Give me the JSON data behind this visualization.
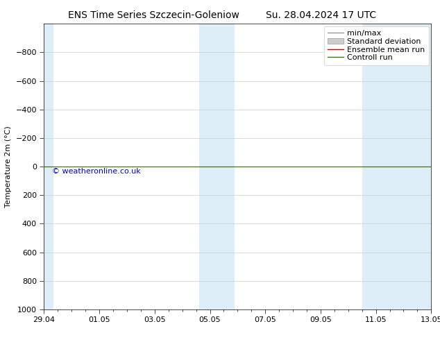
{
  "title_left": "ENS Time Series Szczecin-Goleniow",
  "title_right": "Su. 28.04.2024 17 UTC",
  "ylabel": "Temperature 2m (°C)",
  "watermark": "© weatheronline.co.uk",
  "watermark_color": "#0000cc",
  "background_color": "#ffffff",
  "plot_bg_color": "#ffffff",
  "ylim_bottom": 1000,
  "ylim_top": -1000,
  "xlim_start": 0,
  "xlim_end": 14,
  "yticks": [
    -800,
    -600,
    -400,
    -200,
    0,
    200,
    400,
    600,
    800,
    1000
  ],
  "xtick_labels": [
    "29.04",
    "01.05",
    "03.05",
    "05.05",
    "07.05",
    "09.05",
    "11.05",
    "13.05"
  ],
  "xtick_positions": [
    0,
    2,
    4,
    6,
    8,
    10,
    12,
    14
  ],
  "shaded_bands": [
    {
      "x_start": 0.0,
      "x_end": 0.35,
      "color": "#ddeef8"
    },
    {
      "x_start": 5.6,
      "x_end": 6.1,
      "color": "#ddeef8"
    },
    {
      "x_start": 6.1,
      "x_end": 6.9,
      "color": "#ddeef8"
    },
    {
      "x_start": 11.5,
      "x_end": 12.15,
      "color": "#ddeef8"
    },
    {
      "x_start": 12.15,
      "x_end": 14.0,
      "color": "#ddeef8"
    }
  ],
  "control_run_y": 0,
  "ensemble_mean_y": 0,
  "control_run_color": "#3a7a00",
  "ensemble_mean_color": "#cc0000",
  "minmax_color": "#999999",
  "stddev_color": "#cccccc",
  "legend_entries": [
    "min/max",
    "Standard deviation",
    "Ensemble mean run",
    "Controll run"
  ],
  "legend_colors": [
    "#999999",
    "#cccccc",
    "#cc0000",
    "#3a7a00"
  ],
  "font_size": 8,
  "title_font_size": 10,
  "watermark_font_size": 8
}
